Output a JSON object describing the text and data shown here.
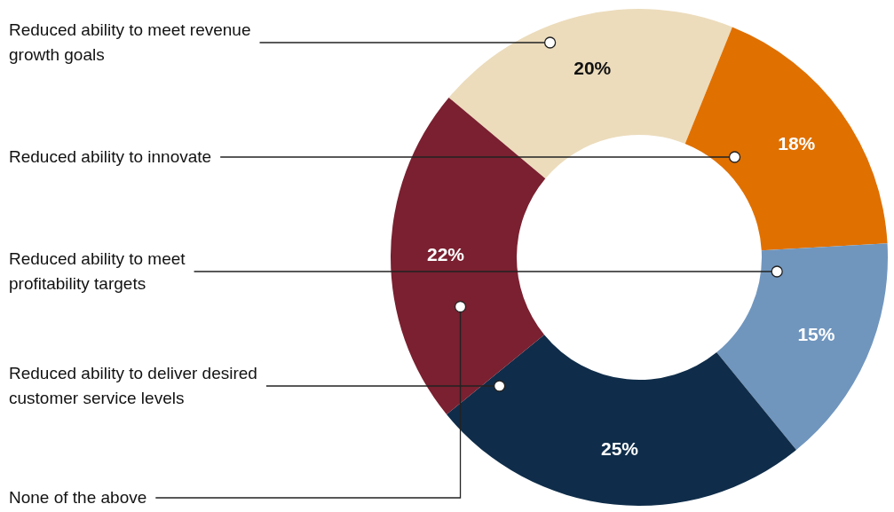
{
  "chart_data": {
    "type": "donut",
    "categories": [
      "Reduced ability to meet revenue growth goals",
      "Reduced ability to innovate",
      "Reduced ability to meet profitability targets",
      "Reduced ability to deliver desired customer service levels",
      "None of the above"
    ],
    "values": [
      20,
      18,
      15,
      25,
      22
    ],
    "colors": [
      "#ecdcbc",
      "#e07000",
      "#7096be",
      "#0f2d4a",
      "#7a2030"
    ],
    "value_labels": [
      "20%",
      "18%",
      "15%",
      "25%",
      "22%"
    ]
  }
}
